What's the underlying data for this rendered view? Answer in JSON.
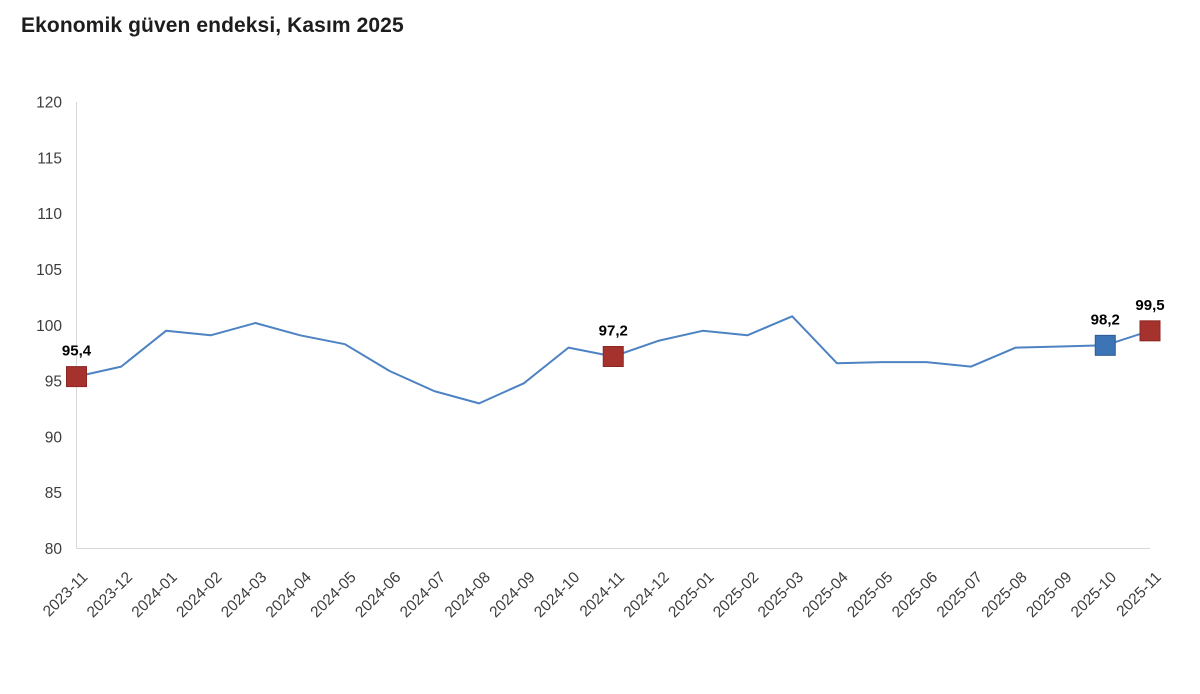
{
  "page": {
    "background": "#ffffff"
  },
  "chart_data": {
    "type": "line",
    "title": "Ekonomik güven endeksi, Kasım 2025",
    "x": [
      "2023-11",
      "2023-12",
      "2024-01",
      "2024-02",
      "2024-03",
      "2024-04",
      "2024-05",
      "2024-06",
      "2024-07",
      "2024-08",
      "2024-09",
      "2024-10",
      "2024-11",
      "2024-12",
      "2025-01",
      "2025-02",
      "2025-03",
      "2025-04",
      "2025-05",
      "2025-06",
      "2025-07",
      "2025-08",
      "2025-09",
      "2025-10",
      "2025-11"
    ],
    "values": [
      95.4,
      96.3,
      99.5,
      99.1,
      100.2,
      99.1,
      98.3,
      95.9,
      94.1,
      93.0,
      94.8,
      98.0,
      97.2,
      98.6,
      99.5,
      99.1,
      100.8,
      96.6,
      96.7,
      96.7,
      96.3,
      98.0,
      98.1,
      98.2,
      99.5
    ],
    "ylim": [
      80,
      120
    ],
    "yticks": [
      80,
      85,
      90,
      95,
      100,
      105,
      110,
      115,
      120
    ],
    "xlabel": "",
    "ylabel": "",
    "grid": false,
    "legend": "none",
    "line_color": "#4d82c3",
    "axis_color": "#d8d8d8",
    "tick_label_color": "#3d3d3d",
    "value_label_color": "#000000",
    "annotations": [
      {
        "x": "2023-11",
        "value": 95.4,
        "label": "95,4",
        "marker_color": "#a5322c",
        "marker_stroke": "#8c2723"
      },
      {
        "x": "2024-11",
        "value": 97.2,
        "label": "97,2",
        "marker_color": "#a5322c",
        "marker_stroke": "#8c2723"
      },
      {
        "x": "2025-10",
        "value": 98.2,
        "label": "98,2",
        "marker_color": "#3c74b5",
        "marker_stroke": "#2f5c95"
      },
      {
        "x": "2025-11",
        "value": 99.5,
        "label": "99,5",
        "marker_color": "#a5322c",
        "marker_stroke": "#8c2723"
      }
    ]
  }
}
